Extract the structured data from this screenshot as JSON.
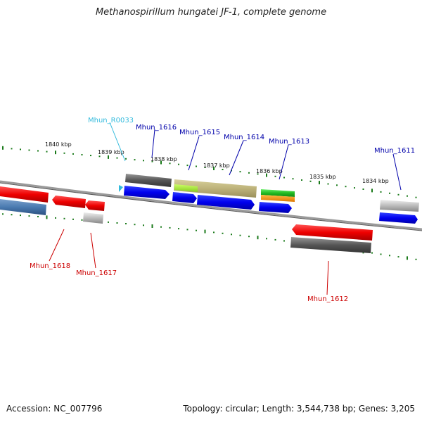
{
  "title": "Methanospirillum hungatei JF-1, complete genome",
  "footer": {
    "accession": "Accession: NC_007796",
    "summary": "Topology: circular; Length: 3,544,738 bp; Genes: 3,205"
  },
  "colors": {
    "backbone": "#8a8a8a",
    "tick": "#1a7a1a",
    "forward_label": "#0000aa",
    "reverse_label": "#cc0000",
    "rna_label": "#33bbdd"
  },
  "ticks": [
    {
      "label": "1840 kbp"
    },
    {
      "label": "1839 kbp"
    },
    {
      "label": "1838 kbp"
    },
    {
      "label": "1837 kbp"
    },
    {
      "label": "1836 kbp"
    },
    {
      "label": "1835 kbp"
    },
    {
      "label": "1834 kbp"
    }
  ],
  "gene_labels": [
    {
      "label": "Mhun_R0033",
      "strand": "rna"
    },
    {
      "label": "Mhun_1616",
      "strand": "forward"
    },
    {
      "label": "Mhun_1615",
      "strand": "forward"
    },
    {
      "label": "Mhun_1614",
      "strand": "forward"
    },
    {
      "label": "Mhun_1613",
      "strand": "forward"
    },
    {
      "label": "Mhun_1611",
      "strand": "forward"
    },
    {
      "label": "Mhun_1618",
      "strand": "reverse"
    },
    {
      "label": "Mhun_1617",
      "strand": "reverse"
    },
    {
      "label": "Mhun_1612",
      "strand": "reverse"
    }
  ]
}
